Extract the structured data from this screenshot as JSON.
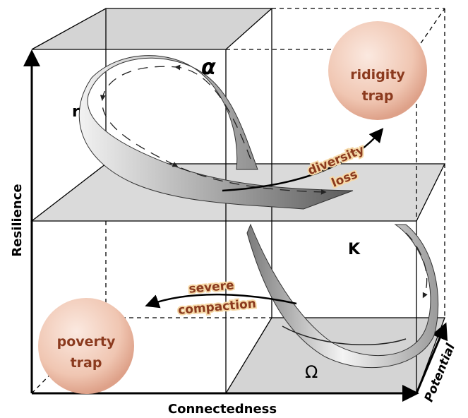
{
  "axes": {
    "y": "Resilience",
    "x": "Connectedness",
    "z": "Potential"
  },
  "phases": {
    "alpha": "α",
    "r": "r",
    "K": "K",
    "omega": "Ω"
  },
  "traps": [
    {
      "lines": [
        "ridigity",
        "trap"
      ]
    },
    {
      "lines": [
        "poverty",
        "trap"
      ]
    }
  ],
  "transitions": [
    {
      "lines": [
        "diversity",
        "loss"
      ]
    },
    {
      "lines": [
        "severe",
        "compaction"
      ]
    }
  ]
}
